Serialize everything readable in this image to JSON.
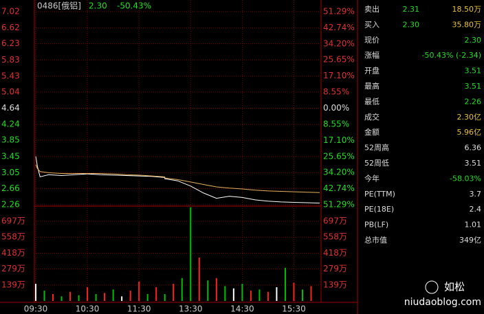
{
  "header": {
    "code": "0486[俄铝]",
    "price": "2.30",
    "change": "-50.43%"
  },
  "chart_data": [
    {
      "type": "line",
      "xlim": [
        "09:30",
        "16:00"
      ],
      "xticks": [
        "09:30",
        "10:30",
        "11:30",
        "13:30",
        "14:30",
        "15:30"
      ],
      "ylim": [
        2.26,
        7.02
      ],
      "yticks": [
        7.02,
        6.62,
        6.23,
        5.83,
        5.43,
        5.04,
        4.64,
        4.24,
        3.85,
        3.45,
        3.05,
        2.66,
        2.26
      ],
      "y2lim": [
        -51.29,
        51.29
      ],
      "y2ticks": [
        {
          "value": 51.29,
          "label": "51.29%"
        },
        {
          "value": 42.74,
          "label": "42.74%"
        },
        {
          "value": 34.2,
          "label": "34.20%"
        },
        {
          "value": 25.65,
          "label": "25.65%"
        },
        {
          "value": 17.1,
          "label": "17.10%"
        },
        {
          "value": 8.55,
          "label": "8.55%"
        },
        {
          "value": 0,
          "label": "0.00%"
        },
        {
          "value": -8.55,
          "label": "8.55%"
        },
        {
          "value": -17.1,
          "label": "17.10%"
        },
        {
          "value": -25.65,
          "label": "25.65%"
        },
        {
          "value": -34.2,
          "label": "34.20%"
        },
        {
          "value": -42.74,
          "label": "42.74%"
        },
        {
          "value": -51.29,
          "label": "51.29%"
        }
      ],
      "grid": true,
      "x": [
        "09:30",
        "09:32",
        "09:35",
        "09:45",
        "10:00",
        "10:15",
        "10:30",
        "10:45",
        "11:00",
        "11:15",
        "11:30",
        "11:45",
        "12:00",
        "13:00",
        "13:15",
        "13:30",
        "13:45",
        "14:00",
        "14:15",
        "14:30",
        "14:45",
        "15:00",
        "15:15",
        "15:30",
        "15:45",
        "16:00"
      ],
      "series": [
        {
          "color": "#ffffff",
          "values": [
            3.45,
            3.2,
            2.95,
            3.0,
            2.98,
            3.0,
            3.02,
            3.0,
            2.99,
            2.98,
            2.97,
            2.96,
            2.93,
            2.9,
            2.85,
            2.72,
            2.55,
            2.42,
            2.47,
            2.44,
            2.38,
            2.35,
            2.33,
            2.32,
            2.31,
            2.3
          ]
        },
        {
          "color": "#e8b15a",
          "values": [
            3.25,
            3.15,
            3.08,
            3.05,
            3.03,
            3.03,
            3.03,
            3.03,
            3.02,
            3.0,
            2.99,
            2.97,
            2.95,
            2.92,
            2.88,
            2.82,
            2.76,
            2.7,
            2.67,
            2.65,
            2.62,
            2.6,
            2.59,
            2.58,
            2.57,
            2.56
          ]
        }
      ]
    },
    {
      "type": "bar",
      "ylim": [
        0,
        830
      ],
      "yticks": [
        {
          "value": 697,
          "label": "697万"
        },
        {
          "value": 558,
          "label": "558万"
        },
        {
          "value": 418,
          "label": "418万"
        },
        {
          "value": 279,
          "label": "279万"
        },
        {
          "value": 139,
          "label": "139万"
        }
      ],
      "x": [
        "09:30",
        "09:40",
        "09:50",
        "10:00",
        "10:10",
        "10:20",
        "10:30",
        "10:40",
        "10:50",
        "11:00",
        "11:10",
        "11:20",
        "11:30",
        "11:40",
        "11:50",
        "13:00",
        "13:10",
        "13:20",
        "13:30",
        "13:40",
        "13:50",
        "14:00",
        "14:10",
        "14:20",
        "14:30",
        "14:40",
        "14:50",
        "15:00",
        "15:10",
        "15:20",
        "15:30",
        "15:40",
        "15:50"
      ],
      "values": [
        150,
        90,
        60,
        40,
        80,
        50,
        120,
        60,
        70,
        100,
        40,
        90,
        170,
        60,
        120,
        60,
        150,
        200,
        820,
        380,
        180,
        200,
        130,
        110,
        150,
        90,
        100,
        80,
        120,
        290,
        160,
        100,
        130
      ],
      "colors": [
        "#ffffff",
        "#00c000",
        "#ff2020",
        "#00c000",
        "#ff2020",
        "#00c000",
        "#ff2020",
        "#00c000",
        "#ff2020",
        "#00c000",
        "#ffffff",
        "#ff2020",
        "#ff2020",
        "#00c000",
        "#ff2020",
        "#00c000",
        "#ff2020",
        "#00c000",
        "#00c000",
        "#ff2020",
        "#00c000",
        "#ff2020",
        "#00c000",
        "#ffffff",
        "#00c000",
        "#ff2020",
        "#00c000",
        "#ff2020",
        "#ffffff",
        "#00c000",
        "#ff2020",
        "#00c000",
        "#ff2020"
      ]
    }
  ],
  "quote": {
    "rows": [
      {
        "label": "卖出",
        "values": [
          "2.31",
          "18.50万"
        ],
        "colors": [
          "#22dd22",
          "#e8c23a"
        ]
      },
      {
        "label": "买入",
        "values": [
          "2.30",
          "35.80万"
        ],
        "colors": [
          "#22dd22",
          "#e8c23a"
        ]
      },
      {
        "label": "现价",
        "values": [
          "2.30"
        ],
        "colors": [
          "#22dd22"
        ]
      },
      {
        "label": "涨幅",
        "values": [
          "-50.43% (-2.34)"
        ],
        "colors": [
          "#22dd22"
        ]
      },
      {
        "label": "开盘",
        "values": [
          "3.51"
        ],
        "colors": [
          "#22dd22"
        ]
      },
      {
        "label": "最高",
        "values": [
          "3.51"
        ],
        "colors": [
          "#22dd22"
        ]
      },
      {
        "label": "最低",
        "values": [
          "2.26"
        ],
        "colors": [
          "#22dd22"
        ]
      },
      {
        "label": "成交",
        "values": [
          "2.30亿"
        ],
        "colors": [
          "#e8c23a"
        ]
      },
      {
        "label": "金额",
        "values": [
          "5.96亿"
        ],
        "colors": [
          "#e8c23a"
        ]
      },
      {
        "label": "52周高",
        "values": [
          "6.36"
        ],
        "colors": [
          "#dddddd"
        ]
      },
      {
        "label": "52周低",
        "values": [
          "3.51"
        ],
        "colors": [
          "#dddddd"
        ]
      },
      {
        "label": "今年",
        "values": [
          "-58.03%"
        ],
        "colors": [
          "#22dd22"
        ]
      },
      {
        "label": "PE(TTM)",
        "values": [
          "3.7"
        ],
        "colors": [
          "#dddddd"
        ]
      },
      {
        "label": "PE(18E)",
        "values": [
          "2.4"
        ],
        "colors": [
          "#dddddd"
        ]
      },
      {
        "label": "PB(LF)",
        "values": [
          "1.01"
        ],
        "colors": [
          "#dddddd"
        ]
      },
      {
        "label": "总市值",
        "values": [
          "349亿"
        ],
        "colors": [
          "#dddddd"
        ]
      }
    ]
  },
  "watermark": {
    "name": "如松",
    "site": "niudaoblog.com"
  }
}
